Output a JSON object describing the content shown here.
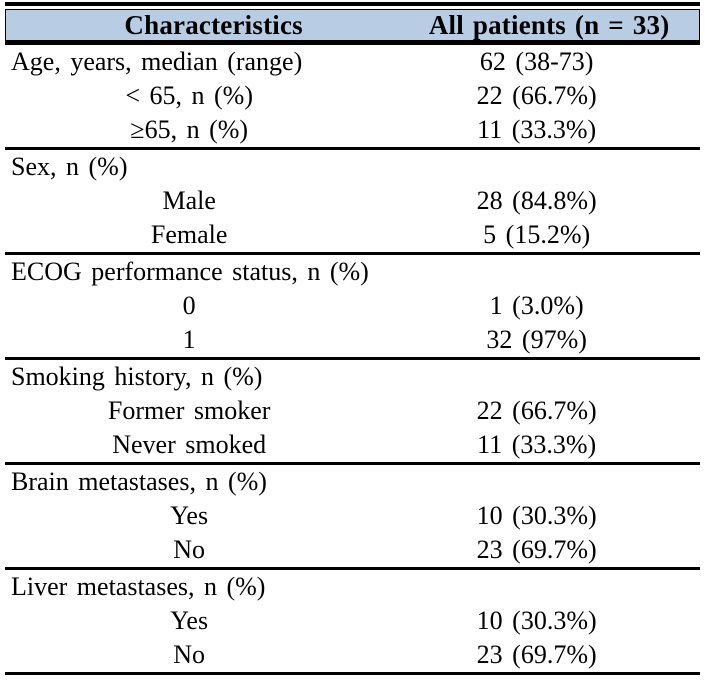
{
  "colors": {
    "header_bg": "#b8cce4",
    "border": "#000000",
    "text": "#000000",
    "page_bg": "#ffffff"
  },
  "table": {
    "columns": [
      "Characteristics",
      "All patients (n = 33)"
    ],
    "sections": [
      {
        "rows": [
          {
            "label": "Age, years, median (range)",
            "value": "62 (38-73)",
            "indent": false
          },
          {
            "label": "< 65, n (%)",
            "value": "22 (66.7%)",
            "indent": true
          },
          {
            "label": "≥65, n (%)",
            "value": "11 (33.3%)",
            "indent": true
          }
        ]
      },
      {
        "rows": [
          {
            "label": "Sex, n (%)",
            "value": "",
            "indent": false
          },
          {
            "label": "Male",
            "value": "28 (84.8%)",
            "indent": true
          },
          {
            "label": "Female",
            "value": "5 (15.2%)",
            "indent": true
          }
        ]
      },
      {
        "rows": [
          {
            "label": "ECOG performance status, n (%)",
            "value": "",
            "indent": false
          },
          {
            "label": "0",
            "value": "1 (3.0%)",
            "indent": true
          },
          {
            "label": "1",
            "value": "32 (97%)",
            "indent": true
          }
        ]
      },
      {
        "rows": [
          {
            "label": "Smoking history, n (%)",
            "value": "",
            "indent": false
          },
          {
            "label": "Former smoker",
            "value": "22 (66.7%)",
            "indent": true
          },
          {
            "label": "Never smoked",
            "value": "11 (33.3%)",
            "indent": true
          }
        ]
      },
      {
        "rows": [
          {
            "label": "Brain metastases, n (%)",
            "value": "",
            "indent": false
          },
          {
            "label": "Yes",
            "value": "10 (30.3%)",
            "indent": true
          },
          {
            "label": "No",
            "value": "23 (69.7%)",
            "indent": true
          }
        ]
      },
      {
        "rows": [
          {
            "label": "Liver metastases, n (%)",
            "value": "",
            "indent": false
          },
          {
            "label": "Yes",
            "value": "10 (30.3%)",
            "indent": true
          },
          {
            "label": "No",
            "value": "23 (69.7%)",
            "indent": true
          }
        ]
      }
    ]
  }
}
